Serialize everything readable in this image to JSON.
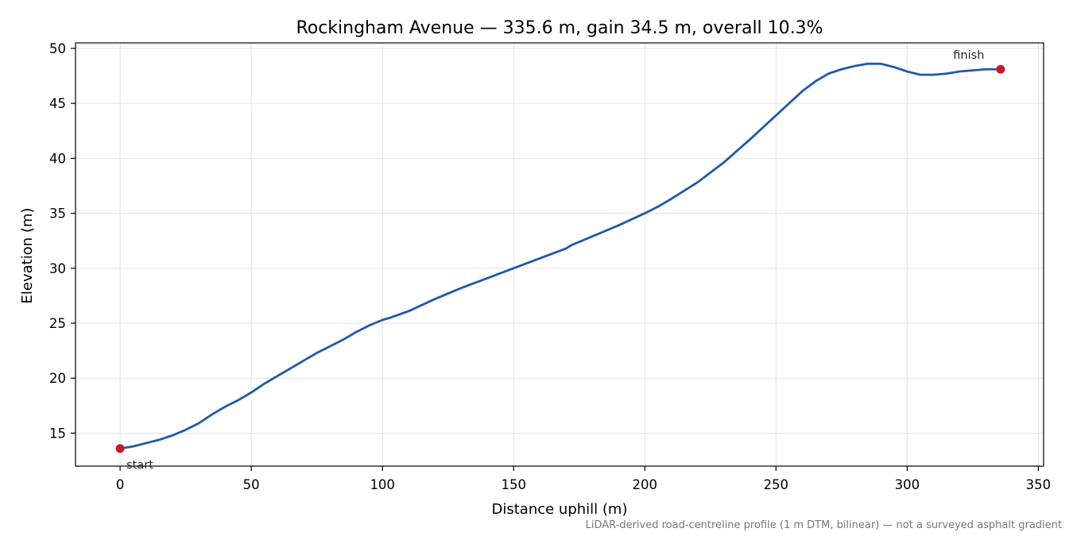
{
  "chart_data": {
    "type": "line",
    "title": "Rockingham Avenue — 335.6 m, gain 34.5 m, overall 10.3%",
    "xlabel": "Distance uphill (m)",
    "ylabel": "Elevation (m)",
    "xlim": [
      -17,
      352
    ],
    "ylim": [
      12,
      50.5
    ],
    "xticks": [
      0,
      50,
      100,
      150,
      200,
      250,
      300,
      350
    ],
    "yticks": [
      15,
      20,
      25,
      30,
      35,
      40,
      45,
      50
    ],
    "grid": true,
    "line_color": "#1f5aa6",
    "marker_color": "#c21b2a",
    "series": [
      {
        "x": [
          0,
          5,
          10,
          15,
          20,
          25,
          30,
          35,
          40,
          45,
          50,
          55,
          60,
          65,
          70,
          75,
          80,
          85,
          90,
          95,
          100,
          103,
          110,
          120,
          130,
          140,
          150,
          160,
          170,
          172,
          180,
          190,
          200,
          205,
          210,
          220,
          230,
          240,
          250,
          255,
          260,
          265,
          270,
          275,
          280,
          285,
          290,
          295,
          300,
          305,
          310,
          315,
          320,
          325,
          330,
          335.6
        ],
        "y": [
          13.6,
          13.8,
          14.1,
          14.4,
          14.8,
          15.3,
          15.9,
          16.7,
          17.4,
          18.0,
          18.7,
          19.5,
          20.2,
          20.9,
          21.6,
          22.3,
          22.9,
          23.5,
          24.2,
          24.8,
          25.3,
          25.5,
          26.1,
          27.2,
          28.2,
          29.1,
          30.0,
          30.9,
          31.8,
          32.1,
          32.9,
          33.9,
          35.0,
          35.6,
          36.3,
          37.8,
          39.6,
          41.7,
          43.9,
          45.0,
          46.1,
          47.0,
          47.7,
          48.1,
          48.4,
          48.6,
          48.6,
          48.3,
          47.9,
          47.6,
          47.6,
          47.7,
          47.9,
          48.0,
          48.1,
          48.1
        ]
      }
    ],
    "markers": [
      {
        "label": "start",
        "x": 0,
        "y": 13.6
      },
      {
        "label": "finish",
        "x": 335.6,
        "y": 48.1
      }
    ],
    "footnote": "LiDAR-derived road-centreline profile (1 m DTM, bilinear) — not a surveyed asphalt gradient"
  }
}
